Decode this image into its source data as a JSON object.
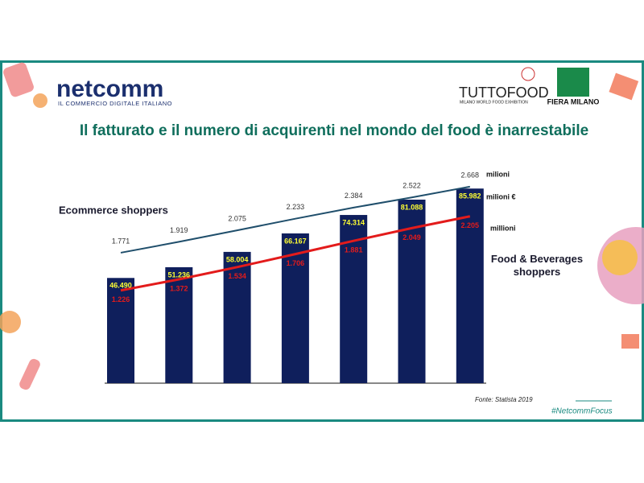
{
  "header": {
    "logo": "netcomm",
    "tagline": "IL COMMERCIO DIGITALE ITALIANO",
    "partner1": "TUTTOFOOD",
    "partner1_sub": "MILANO WORLD FOOD EXHIBITION",
    "partner2": "FIERA MILANO"
  },
  "footer": {
    "source": "Fonte: Statista 2019",
    "hashtag": "#NetcommFocus"
  },
  "chart_data": {
    "type": "bar",
    "title": "Il fatturato e il numero di acquirenti nel mondo del food è inarrestabile",
    "series": [
      {
        "type": "bar",
        "unit": "milioni €",
        "color": "#0f1f5c",
        "values": [
          46490,
          51236,
          58004,
          66167,
          74314,
          81088,
          85982
        ],
        "value_labels": [
          "46.490",
          "51.236",
          "58.004",
          "66.167",
          "74.314",
          "81.088",
          "85.982"
        ]
      },
      {
        "type": "line",
        "name": "Ecommerce shoppers",
        "unit": "milioni",
        "color": "#1f4e6b",
        "values": [
          1771,
          1919,
          2075,
          2233,
          2384,
          2522,
          2668
        ],
        "value_labels": [
          "1.771",
          "1.919",
          "2.075",
          "2.233",
          "2.384",
          "2.522",
          "2.668"
        ]
      },
      {
        "type": "line",
        "name": "Food & Beverages shoppers",
        "unit": "millioni",
        "color": "#e31b1b",
        "values": [
          1226,
          1372,
          1534,
          1706,
          1881,
          2049,
          2205
        ],
        "value_labels": [
          "1.226",
          "1.372",
          "1.534",
          "1.706",
          "1.881",
          "2.049",
          "2.205"
        ]
      }
    ]
  }
}
